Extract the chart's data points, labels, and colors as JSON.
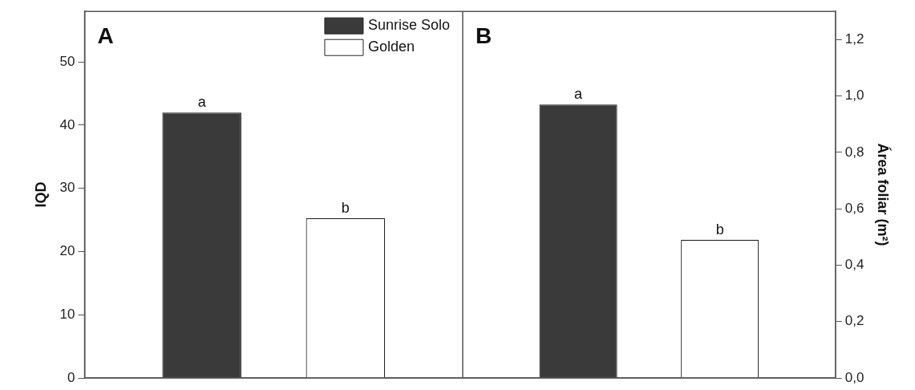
{
  "chart_data": [
    {
      "type": "bar",
      "title": "A",
      "ylabel": "IQD",
      "categories": [
        null
      ],
      "series": [
        {
          "name": "Sunrise Solo",
          "color": "#3a3a3a",
          "values": [
            42.0
          ],
          "value_labels": [
            "a"
          ]
        },
        {
          "name": "Golden",
          "color": "#ffffff",
          "values": [
            25.3
          ],
          "value_labels": [
            "b"
          ]
        }
      ],
      "ylim": [
        0,
        58
      ],
      "yticks": [
        0,
        10,
        20,
        30,
        40,
        50
      ],
      "legend": "top right",
      "grid": false
    },
    {
      "type": "bar",
      "title": "B",
      "ylabel": "Área foliar (m²)",
      "categories": [
        null
      ],
      "series": [
        {
          "color": "#3a3a3a",
          "values": [
            0.97
          ],
          "value_labels": [
            "a"
          ]
        },
        {
          "color": "#ffffff",
          "values": [
            0.49
          ],
          "value_labels": [
            "b"
          ]
        }
      ],
      "ylim": [
        0,
        1.3
      ],
      "yticks": [
        {
          "value": 0,
          "label": "0,0"
        },
        {
          "value": 0.2,
          "label": "0,2"
        },
        {
          "value": 0.4,
          "label": "0,4"
        },
        {
          "value": 0.6,
          "label": "0,6"
        },
        {
          "value": 0.8,
          "label": "0,8"
        },
        {
          "value": 1.0,
          "label": "1,0"
        },
        {
          "value": 1.2,
          "label": "1,2"
        }
      ],
      "grid": false
    }
  ]
}
